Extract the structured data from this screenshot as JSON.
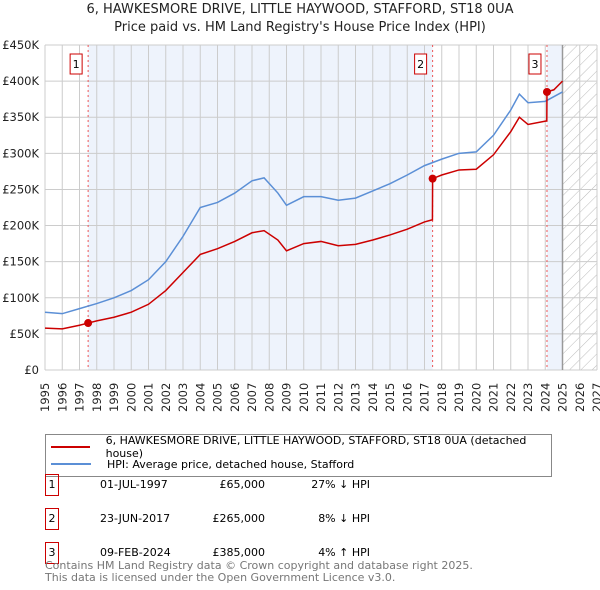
{
  "chart_data": {
    "type": "line",
    "title": "6, HAWKESMORE DRIVE, LITTLE HAYWOOD, STAFFORD, ST18 0UA",
    "subtitle": "Price paid vs. HM Land Registry's House Price Index (HPI)",
    "xlim": [
      1995,
      2027
    ],
    "ylim": [
      0,
      450000
    ],
    "y_ticks": [
      {
        "v": 0,
        "label": "£0"
      },
      {
        "v": 50000,
        "label": "£50K"
      },
      {
        "v": 100000,
        "label": "£100K"
      },
      {
        "v": 150000,
        "label": "£150K"
      },
      {
        "v": 200000,
        "label": "£200K"
      },
      {
        "v": 250000,
        "label": "£250K"
      },
      {
        "v": 300000,
        "label": "£300K"
      },
      {
        "v": 350000,
        "label": "£350K"
      },
      {
        "v": 400000,
        "label": "£400K"
      },
      {
        "v": 450000,
        "label": "£450K"
      }
    ],
    "x_ticks": [
      "1995",
      "1996",
      "1997",
      "1998",
      "1999",
      "2000",
      "2001",
      "2002",
      "2003",
      "2004",
      "2005",
      "2006",
      "2007",
      "2008",
      "2009",
      "2010",
      "2011",
      "2012",
      "2013",
      "2014",
      "2015",
      "2016",
      "2017",
      "2018",
      "2019",
      "2020",
      "2021",
      "2022",
      "2023",
      "2024",
      "2025",
      "2026",
      "2027"
    ],
    "grid": true,
    "forecast_from": 2025.0,
    "series": [
      {
        "name": "6, HAWKESMORE DRIVE, LITTLE HAYWOOD, STAFFORD, ST18 0UA (detached house)",
        "color": "#cc0000",
        "x": [
          1995,
          1996,
          1997,
          1997.5,
          1998,
          1999,
          2000,
          2001,
          2002,
          2003,
          2004,
          2005,
          2006,
          2007,
          2007.7,
          2008.5,
          2009,
          2010,
          2011,
          2012,
          2013,
          2014,
          2015,
          2016,
          2017,
          2017.46,
          2017.47,
          2018,
          2019,
          2020,
          2021,
          2022,
          2022.5,
          2023,
          2024.09,
          2024.1,
          2024.5,
          2025
        ],
        "y": [
          58000,
          57000,
          62000,
          65000,
          68000,
          73000,
          80000,
          91000,
          110000,
          135000,
          160000,
          168000,
          178000,
          190000,
          193000,
          180000,
          165000,
          175000,
          178000,
          172000,
          174000,
          180000,
          187000,
          195000,
          205000,
          208000,
          265000,
          270000,
          277000,
          278000,
          298000,
          330000,
          350000,
          340000,
          345000,
          385000,
          388000,
          400000
        ]
      },
      {
        "name": "HPI: Average price, detached house, Stafford",
        "color": "#5b8fd6",
        "x": [
          1995,
          1996,
          1997,
          1998,
          1999,
          2000,
          2001,
          2002,
          2003,
          2004,
          2005,
          2006,
          2007,
          2007.7,
          2008.5,
          2009,
          2010,
          2011,
          2012,
          2013,
          2014,
          2015,
          2016,
          2017,
          2018,
          2019,
          2020,
          2021,
          2022,
          2022.5,
          2023,
          2024,
          2025
        ],
        "y": [
          80000,
          78000,
          85000,
          92000,
          100000,
          110000,
          125000,
          150000,
          185000,
          225000,
          232000,
          245000,
          262000,
          266000,
          245000,
          228000,
          240000,
          240000,
          235000,
          238000,
          248000,
          258000,
          270000,
          283000,
          292000,
          300000,
          302000,
          325000,
          360000,
          382000,
          370000,
          372000,
          385000
        ]
      }
    ],
    "sales": [
      {
        "label": "1",
        "x": 1997.5,
        "y": 65000,
        "date": "01-JUL-1997",
        "price": "£65,000",
        "hpi": "27% ↓ HPI"
      },
      {
        "label": "2",
        "x": 2017.47,
        "y": 265000,
        "date": "23-JUN-2017",
        "price": "£265,000",
        "hpi": "8% ↓ HPI"
      },
      {
        "label": "3",
        "x": 2024.1,
        "y": 385000,
        "date": "09-FEB-2024",
        "price": "£385,000",
        "hpi": "4% ↑ HPI"
      }
    ]
  },
  "footer": {
    "line1": "Contains HM Land Registry data © Crown copyright and database right 2025.",
    "line2": "This data is licensed under the Open Government Licence v3.0."
  }
}
